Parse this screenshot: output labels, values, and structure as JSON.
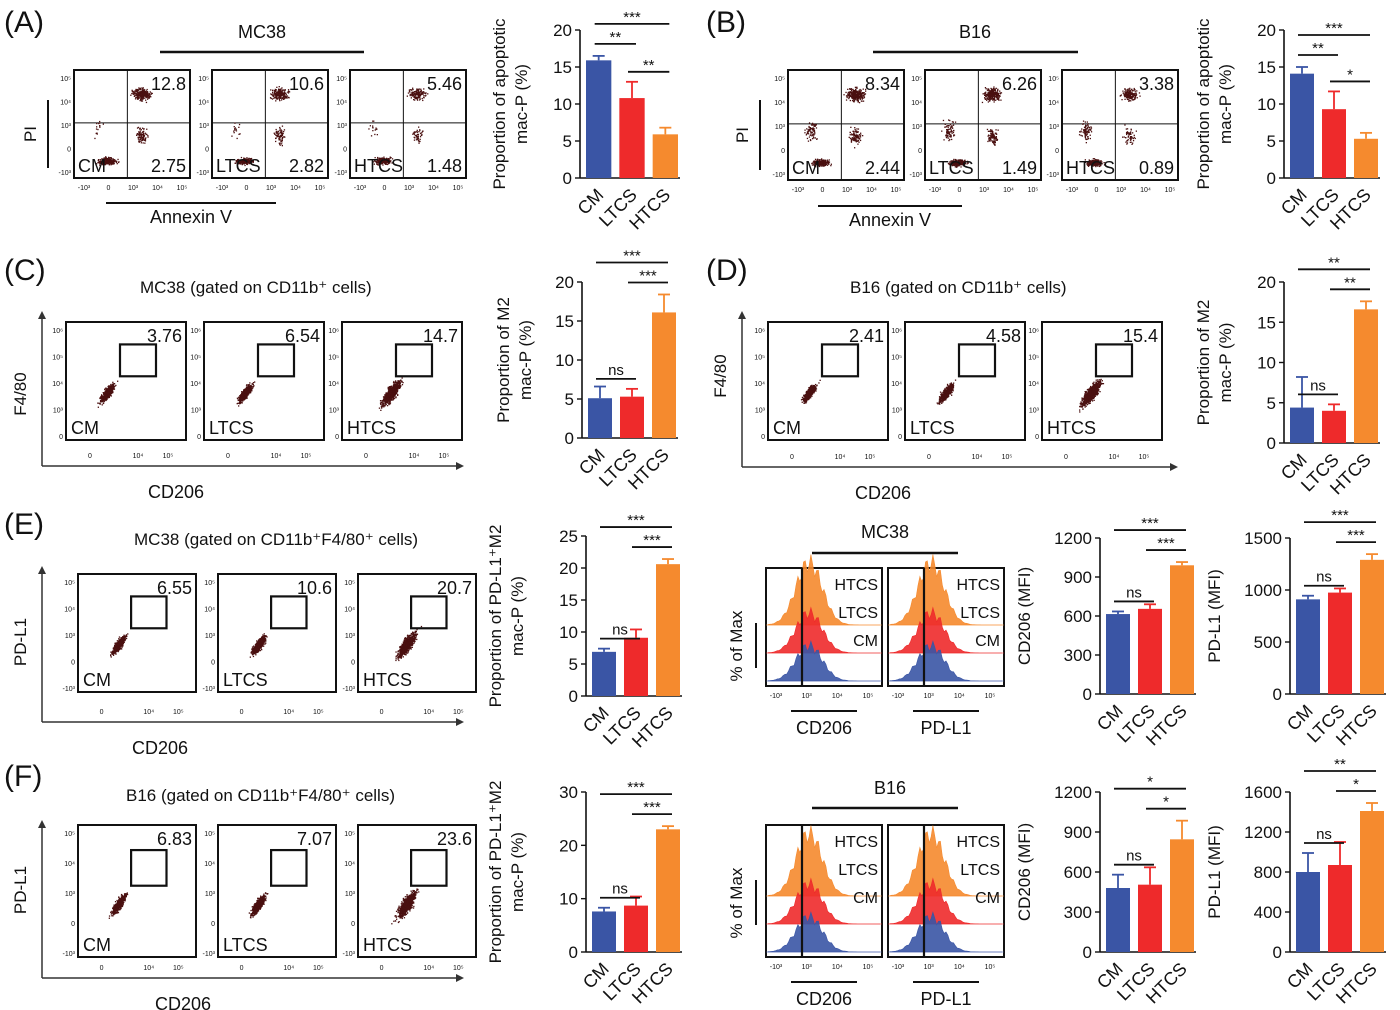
{
  "colors": {
    "CM": "#3a55a5",
    "LTCS": "#ee2a2b",
    "HTCS": "#f58a2e",
    "dot": "#4a1010"
  },
  "panels": {
    "A": {
      "letter": "(A)",
      "title": "MC38",
      "flow": {
        "ylabel": "PI",
        "xlabel": "Annexin V",
        "xticks": [
          "-10³",
          "0",
          "10³",
          "10⁴",
          "10⁵"
        ],
        "yticks": [
          "10⁵",
          "10⁴",
          "10³",
          "0",
          "-10³"
        ],
        "plots": [
          {
            "group": "CM",
            "q_ur": "12.8",
            "q_lr": "2.75"
          },
          {
            "group": "LTCS",
            "q_ur": "10.6",
            "q_lr": "2.82"
          },
          {
            "group": "HTCS",
            "q_ur": "5.46",
            "q_lr": "1.48"
          }
        ]
      },
      "bar": {
        "ylabel": [
          "Proportion of apoptotic",
          "mac-P  (%)"
        ],
        "yticks": [
          "0",
          "5",
          "10",
          "15",
          "20"
        ],
        "sig": [
          "***",
          "**",
          "**"
        ]
      }
    },
    "B": {
      "letter": "(B)",
      "title": "B16",
      "flow": {
        "ylabel": "PI",
        "xlabel": "Annexin V",
        "xticks": [
          "-10³",
          "0",
          "10³",
          "10⁴",
          "10⁵"
        ],
        "yticks": [
          "10⁵",
          "10⁴",
          "10³",
          "0",
          "-10³"
        ],
        "plots": [
          {
            "group": "CM",
            "q_ur": "8.34",
            "q_lr": "2.44"
          },
          {
            "group": "LTCS",
            "q_ur": "6.26",
            "q_lr": "1.49"
          },
          {
            "group": "HTCS",
            "q_ur": "3.38",
            "q_lr": "0.89"
          }
        ]
      },
      "bar": {
        "ylabel": [
          "Proportion of apoptotic",
          "mac-P  (%)"
        ],
        "yticks": [
          "0",
          "5",
          "10",
          "15",
          "20"
        ],
        "sig": [
          "***",
          "**",
          "*"
        ]
      }
    },
    "C": {
      "letter": "(C)",
      "title": "MC38 (gated on CD11b⁺ cells)",
      "flow": {
        "ylabel": "F4/80",
        "xlabel": "CD206",
        "xticks": [
          "0",
          "10⁴",
          "10⁵"
        ],
        "yticks": [
          "10⁶",
          "10⁵",
          "10⁴",
          "10³",
          "0"
        ],
        "plots": [
          {
            "group": "CM",
            "gate": "3.76"
          },
          {
            "group": "LTCS",
            "gate": "6.54"
          },
          {
            "group": "HTCS",
            "gate": "14.7"
          }
        ]
      },
      "bar": {
        "ylabel": [
          "Proportion of M2",
          "mac-P  (%)"
        ],
        "yticks": [
          "0",
          "5",
          "10",
          "15",
          "20"
        ],
        "sig": [
          "***",
          "***",
          "ns"
        ]
      }
    },
    "D": {
      "letter": "(D)",
      "title": "B16 (gated on CD11b⁺ cells)",
      "flow": {
        "ylabel": "F4/80",
        "xlabel": "CD206",
        "xticks": [
          "0",
          "10⁴",
          "10⁵"
        ],
        "yticks": [
          "10⁶",
          "10⁵",
          "10⁴",
          "10³",
          "0"
        ],
        "plots": [
          {
            "group": "CM",
            "gate": "2.41"
          },
          {
            "group": "LTCS",
            "gate": "4.58"
          },
          {
            "group": "HTCS",
            "gate": "15.4"
          }
        ]
      },
      "bar": {
        "ylabel": [
          "Proportion of M2",
          "mac-P  (%)"
        ],
        "yticks": [
          "0",
          "5",
          "10",
          "15",
          "20"
        ],
        "sig": [
          "**",
          "**",
          "ns"
        ]
      }
    },
    "E": {
      "letter": "(E)",
      "title": "MC38 (gated on CD11b⁺F4/80⁺ cells)",
      "flow": {
        "ylabel": "PD-L1",
        "xlabel": "CD206",
        "xticks": [
          "0",
          "10⁴",
          "10⁵"
        ],
        "yticks": [
          "10⁵",
          "10⁴",
          "10³",
          "0",
          "-10³"
        ],
        "plots": [
          {
            "group": "CM",
            "gate": "6.55"
          },
          {
            "group": "LTCS",
            "gate": "10.6"
          },
          {
            "group": "HTCS",
            "gate": "20.7"
          }
        ]
      },
      "bar": {
        "ylabel": [
          "Proportion of PD-L1⁺M2",
          "mac-P  (%)"
        ],
        "yticks": [
          "0",
          "5",
          "10",
          "15",
          "20",
          "25"
        ],
        "sig": [
          "***",
          "***",
          "ns"
        ]
      },
      "hist": {
        "title": "MC38",
        "ylabel": "% of Max",
        "xticks": [
          "-10³",
          "10³",
          "10⁴",
          "10⁵"
        ],
        "xlabels": [
          "CD206",
          "PD-L1"
        ],
        "labels": [
          "HTCS",
          "LTCS",
          "CM"
        ]
      },
      "mfi1": {
        "ylabel": "CD206 (MFI)",
        "yticks": [
          "0",
          "300",
          "600",
          "900",
          "1200"
        ],
        "sig": [
          "***",
          "***",
          "ns"
        ]
      },
      "mfi2": {
        "ylabel": "PD-L1 (MFI)",
        "yticks": [
          "0",
          "500",
          "1000",
          "1500"
        ],
        "sig": [
          "***",
          "***",
          "ns"
        ]
      }
    },
    "F": {
      "letter": "(F)",
      "title": "B16 (gated on CD11b⁺F4/80⁺ cells)",
      "flow": {
        "ylabel": "PD-L1",
        "xlabel": "CD206",
        "xticks": [
          "0",
          "10⁴",
          "10⁵"
        ],
        "yticks": [
          "10⁵",
          "10⁴",
          "10³",
          "0",
          "-10³"
        ],
        "plots": [
          {
            "group": "CM",
            "gate": "6.83"
          },
          {
            "group": "LTCS",
            "gate": "7.07"
          },
          {
            "group": "HTCS",
            "gate": "23.6"
          }
        ]
      },
      "bar": {
        "ylabel": [
          "Proportion of PD-L1⁺M2",
          "mac-P  (%)"
        ],
        "yticks": [
          "0",
          "10",
          "20",
          "30"
        ],
        "sig": [
          "***",
          "***",
          "ns"
        ]
      },
      "hist": {
        "title": "B16",
        "ylabel": "% of Max",
        "xticks": [
          "-10³",
          "10³",
          "10⁴",
          "10⁵"
        ],
        "xlabels": [
          "CD206",
          "PD-L1"
        ],
        "labels": [
          "HTCS",
          "LTCS",
          "CM"
        ]
      },
      "mfi1": {
        "ylabel": "CD206 (MFI)",
        "yticks": [
          "0",
          "300",
          "600",
          "900",
          "1200"
        ],
        "sig": [
          "*",
          "*",
          "ns"
        ]
      },
      "mfi2": {
        "ylabel": "PD-L1 (MFI)",
        "yticks": [
          "0",
          "400",
          "800",
          "1200",
          "1600"
        ],
        "sig": [
          "**",
          "*",
          "ns"
        ]
      }
    }
  },
  "chart_data": [
    {
      "type": "bar",
      "panel": "A",
      "categories": [
        "CM",
        "LTCS",
        "HTCS"
      ],
      "values": [
        15.9,
        10.8,
        5.9
      ],
      "errors": [
        0.6,
        2.2,
        0.9
      ],
      "ylim": [
        0,
        20
      ]
    },
    {
      "type": "bar",
      "panel": "B",
      "categories": [
        "CM",
        "LTCS",
        "HTCS"
      ],
      "values": [
        14.1,
        9.3,
        5.3
      ],
      "errors": [
        0.9,
        2.4,
        0.8
      ],
      "ylim": [
        0,
        20
      ]
    },
    {
      "type": "bar",
      "panel": "C",
      "categories": [
        "CM",
        "LTCS",
        "HTCS"
      ],
      "values": [
        5.1,
        5.3,
        16.1
      ],
      "errors": [
        1.5,
        1.0,
        2.3
      ],
      "ylim": [
        0,
        20
      ]
    },
    {
      "type": "bar",
      "panel": "D",
      "categories": [
        "CM",
        "LTCS",
        "HTCS"
      ],
      "values": [
        4.4,
        4.0,
        16.6
      ],
      "errors": [
        3.8,
        0.8,
        1.0
      ],
      "ylim": [
        0,
        20
      ]
    },
    {
      "type": "bar",
      "panel": "E",
      "categories": [
        "CM",
        "LTCS",
        "HTCS"
      ],
      "values": [
        6.9,
        9.1,
        20.6
      ],
      "errors": [
        0.5,
        1.3,
        0.8
      ],
      "ylim": [
        0,
        25
      ]
    },
    {
      "type": "bar",
      "panel": "E",
      "categories": [
        "CM",
        "LTCS",
        "HTCS"
      ],
      "values": [
        615,
        655,
        990
      ],
      "errors": [
        20,
        35,
        25
      ],
      "ylim": [
        0,
        1200
      ]
    },
    {
      "type": "bar",
      "panel": "E",
      "categories": [
        "CM",
        "LTCS",
        "HTCS"
      ],
      "values": [
        910,
        975,
        1290
      ],
      "errors": [
        35,
        40,
        55
      ],
      "ylim": [
        0,
        1500
      ]
    },
    {
      "type": "bar",
      "panel": "F",
      "categories": [
        "CM",
        "LTCS",
        "HTCS"
      ],
      "values": [
        7.6,
        8.7,
        23.0
      ],
      "errors": [
        0.7,
        1.7,
        0.6
      ],
      "ylim": [
        0,
        30
      ]
    },
    {
      "type": "bar",
      "panel": "F",
      "categories": [
        "CM",
        "LTCS",
        "HTCS"
      ],
      "values": [
        480,
        505,
        845
      ],
      "errors": [
        100,
        130,
        140
      ],
      "ylim": [
        0,
        1200
      ]
    },
    {
      "type": "bar",
      "panel": "F",
      "categories": [
        "CM",
        "LTCS",
        "HTCS"
      ],
      "values": [
        800,
        870,
        1410
      ],
      "errors": [
        190,
        230,
        80
      ],
      "ylim": [
        0,
        1600
      ]
    }
  ]
}
